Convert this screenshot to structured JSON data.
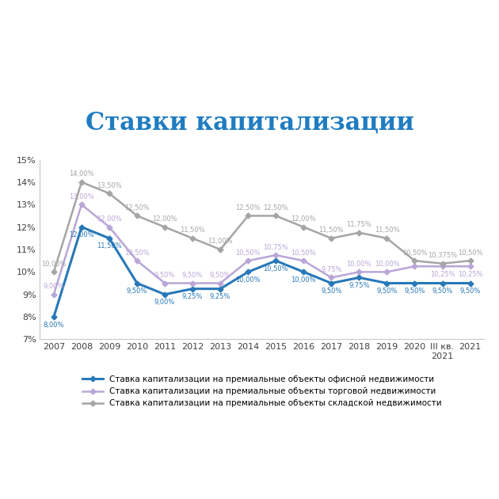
{
  "chart_data": {
    "type": "line",
    "title": "Ставки капитализации",
    "categories": [
      "2007",
      "2008",
      "2009",
      "2010",
      "2011",
      "2012",
      "2013",
      "2014",
      "2015",
      "2016",
      "2017",
      "2018",
      "2019",
      "2020",
      "III кв. 2021",
      "2021"
    ],
    "ylim": [
      7,
      15
    ],
    "yticks": [
      {
        "value": 7,
        "label": "7%"
      },
      {
        "value": 8,
        "label": "8%"
      },
      {
        "value": 9,
        "label": "9%"
      },
      {
        "value": 10,
        "label": "10%"
      },
      {
        "value": 11,
        "label": "11%"
      },
      {
        "value": 12,
        "label": "12%"
      },
      {
        "value": 13,
        "label": "13%"
      },
      {
        "value": 14,
        "label": "14%"
      },
      {
        "value": 15,
        "label": "15%"
      }
    ],
    "grid": false,
    "legend": "bottom",
    "data_labels": true,
    "marker": "diamond",
    "line_style": "solid",
    "series": [
      {
        "name": "Ставка капитализации на премиальные объекты офисной недвижимости",
        "color": "#2878b8",
        "values": [
          8.0,
          12.0,
          11.5,
          9.5,
          9.0,
          9.25,
          9.25,
          10.0,
          10.5,
          10.0,
          9.5,
          9.75,
          9.5,
          9.5,
          9.5,
          9.5
        ],
        "value_labels": [
          "8,00%",
          "12,00%",
          "11,50%",
          "9,50%",
          "9,00%",
          "9,25%",
          "9,25%",
          "10,00%",
          "10,50%",
          "10,00%",
          "9,50%",
          "9,75%",
          "9,50%",
          "9,50%",
          "9,50%",
          "9,50%"
        ]
      },
      {
        "name": "Ставка капитализации на премиальные объекты торговой недвижимости",
        "color": "#b9a6d6",
        "values": [
          9.0,
          13.0,
          12.0,
          10.5,
          9.5,
          9.5,
          9.5,
          10.5,
          10.75,
          10.5,
          9.75,
          10.0,
          10.0,
          10.25,
          10.25,
          10.25
        ],
        "value_labels": [
          "9,00%",
          "13,00%",
          "12,00%",
          "10,50%",
          "9,50%",
          "9,50%",
          "9,50%",
          "10,50%",
          "10,75%",
          "10,50%",
          "9,75%",
          "10,00%",
          "10,00%",
          null,
          "10,25%",
          "10,25%"
        ]
      },
      {
        "name": "Ставка капитализации на премиальные объекты складской недвижимости",
        "color": "#a5a5a5",
        "values": [
          10.0,
          14.0,
          13.5,
          12.5,
          12.0,
          11.5,
          11.0,
          12.5,
          12.5,
          12.0,
          11.5,
          11.75,
          11.5,
          10.5,
          10.375,
          10.5
        ],
        "value_labels": [
          "10,00%",
          "14,00%",
          "13,50%",
          "12,50%",
          "12,00%",
          "11,50%",
          "11,00%",
          "12,50%",
          "12,50%",
          "12,00%",
          "11,50%",
          "11,75%",
          "11,50%",
          "10,50%",
          "10,375%",
          "10,50%"
        ]
      }
    ]
  }
}
